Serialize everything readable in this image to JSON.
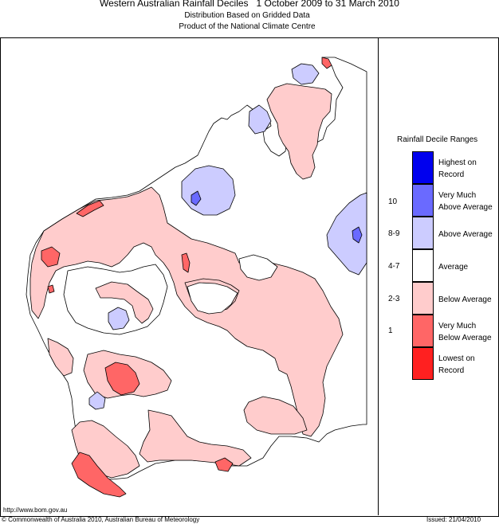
{
  "header": {
    "title": "Western Australian Rainfall Deciles",
    "date_range": "1 October 2009 to 31 March 2010",
    "subtitle1": "Distribution Based on Gridded Data",
    "subtitle2": "Product of the National Climate Centre"
  },
  "legend": {
    "title": "Rainfall Decile Ranges",
    "items": [
      {
        "code": "",
        "label": "Highest on Record",
        "color": "#0000ee"
      },
      {
        "code": "10",
        "label": "Very Much Above Average",
        "color": "#6a6aff"
      },
      {
        "code": "8-9",
        "label": "Above Average",
        "color": "#ccccff"
      },
      {
        "code": "4-7",
        "label": "Average",
        "color": "#ffffff"
      },
      {
        "code": "2-3",
        "label": "Below Average",
        "color": "#ffcccc"
      },
      {
        "code": "1",
        "label": "Very Much Below Average",
        "color": "#ff6666"
      },
      {
        "code": "",
        "label": "Lowest on Record",
        "color": "#ff2020"
      }
    ]
  },
  "footer": {
    "url": "http://www.bom.gov.au",
    "copyright": "© Commonwealth of Australia 2010, Australian Bureau of Meteorology",
    "issued": "Issued: 21/04/2010"
  }
}
